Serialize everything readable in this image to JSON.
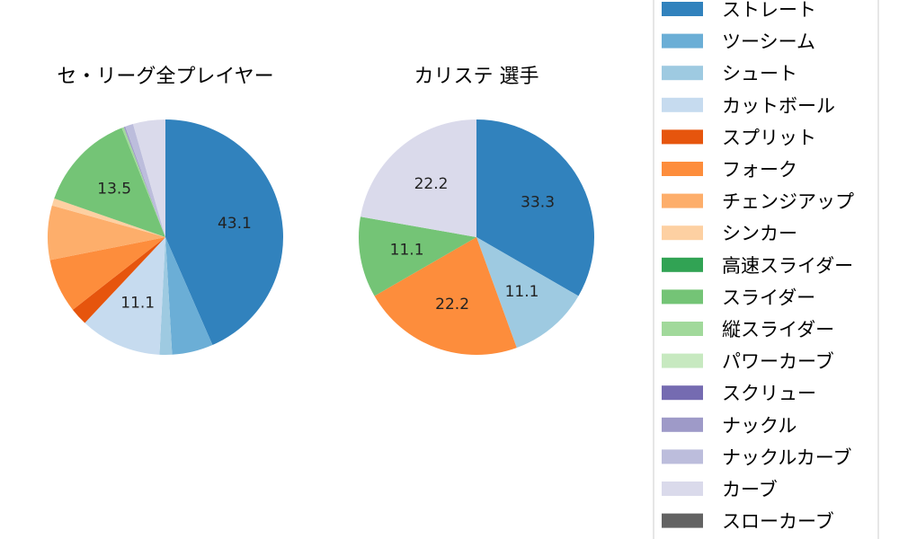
{
  "chart_data": [
    {
      "type": "pie",
      "title": "セ・リーグ全プレイヤー",
      "slices": [
        {
          "name": "ストレート",
          "value": 43.1,
          "label": "43.1",
          "color": "#3182bd"
        },
        {
          "name": "ツーシーム",
          "value": 5.6,
          "label": "",
          "color": "#6baed6"
        },
        {
          "name": "シュート",
          "value": 1.7,
          "label": "",
          "color": "#9ecae1"
        },
        {
          "name": "カットボール",
          "value": 11.1,
          "label": "11.1",
          "color": "#c6dbef"
        },
        {
          "name": "スプリット",
          "value": 2.4,
          "label": "",
          "color": "#e6550d"
        },
        {
          "name": "フォーク",
          "value": 7.4,
          "label": "",
          "color": "#fd8d3c"
        },
        {
          "name": "チェンジアップ",
          "value": 7.4,
          "label": "",
          "color": "#fdae6b"
        },
        {
          "name": "シンカー",
          "value": 1.0,
          "label": "",
          "color": "#fdd0a2"
        },
        {
          "name": "高速スライダー",
          "value": 0.0,
          "label": "",
          "color": "#31a354"
        },
        {
          "name": "スライダー",
          "value": 13.5,
          "label": "13.5",
          "color": "#74c476"
        },
        {
          "name": "縦スライダー",
          "value": 0.3,
          "label": "",
          "color": "#a1d99b"
        },
        {
          "name": "パワーカーブ",
          "value": 0.0,
          "label": "",
          "color": "#c7e9c0"
        },
        {
          "name": "スクリュー",
          "value": 0.0,
          "label": "",
          "color": "#756bb1"
        },
        {
          "name": "ナックル",
          "value": 0.2,
          "label": "",
          "color": "#9e9ac8"
        },
        {
          "name": "ナックルカーブ",
          "value": 1.1,
          "label": "",
          "color": "#bcbddc"
        },
        {
          "name": "カーブ",
          "value": 4.4,
          "label": "",
          "color": "#dadaeb"
        },
        {
          "name": "スローカーブ",
          "value": 0.0,
          "label": "",
          "color": "#636363"
        }
      ]
    },
    {
      "type": "pie",
      "title": "カリステ  選手",
      "slices": [
        {
          "name": "ストレート",
          "value": 33.3,
          "label": "33.3",
          "color": "#3182bd"
        },
        {
          "name": "シュート",
          "value": 11.1,
          "label": "11.1",
          "color": "#9ecae1"
        },
        {
          "name": "フォーク",
          "value": 22.2,
          "label": "22.2",
          "color": "#fd8d3c"
        },
        {
          "name": "スライダー",
          "value": 11.1,
          "label": "11.1",
          "color": "#74c476"
        },
        {
          "name": "カーブ",
          "value": 22.2,
          "label": "22.2",
          "color": "#dadaeb"
        }
      ]
    }
  ],
  "legend": {
    "placement": "right",
    "items": [
      {
        "label": "ストレート",
        "color": "#3182bd"
      },
      {
        "label": "ツーシーム",
        "color": "#6baed6"
      },
      {
        "label": "シュート",
        "color": "#9ecae1"
      },
      {
        "label": "カットボール",
        "color": "#c6dbef"
      },
      {
        "label": "スプリット",
        "color": "#e6550d"
      },
      {
        "label": "フォーク",
        "color": "#fd8d3c"
      },
      {
        "label": "チェンジアップ",
        "color": "#fdae6b"
      },
      {
        "label": "シンカー",
        "color": "#fdd0a2"
      },
      {
        "label": "高速スライダー",
        "color": "#31a354"
      },
      {
        "label": "スライダー",
        "color": "#74c476"
      },
      {
        "label": "縦スライダー",
        "color": "#a1d99b"
      },
      {
        "label": "パワーカーブ",
        "color": "#c7e9c0"
      },
      {
        "label": "スクリュー",
        "color": "#756bb1"
      },
      {
        "label": "ナックル",
        "color": "#9e9ac8"
      },
      {
        "label": "ナックルカーブ",
        "color": "#bcbddc"
      },
      {
        "label": "カーブ",
        "color": "#dadaeb"
      },
      {
        "label": "スローカーブ",
        "color": "#636363"
      }
    ]
  }
}
